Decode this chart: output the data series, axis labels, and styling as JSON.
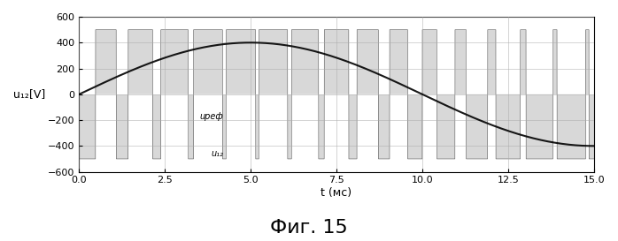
{
  "title": "Фиг. 15",
  "xlabel": "t (мс)",
  "ylabel": "u₁₂[V]",
  "xlim": [
    0,
    15
  ],
  "ylim": [
    -600,
    600
  ],
  "yticks": [
    -600,
    -400,
    -200,
    0,
    200,
    400,
    600
  ],
  "xticks": [
    0,
    2.5,
    5,
    7.5,
    10,
    12.5,
    15
  ],
  "Vdc": 500,
  "Vref_amp": 400,
  "freq_ref": 50,
  "freq_carrier": 1050,
  "label_uref": "uреф",
  "label_u12": "u₁₂",
  "background_color": "#ffffff",
  "grid_color": "#aaaaaa",
  "pwm_color": "#555555",
  "ref_color": "#000000",
  "sine_color": "#000000"
}
